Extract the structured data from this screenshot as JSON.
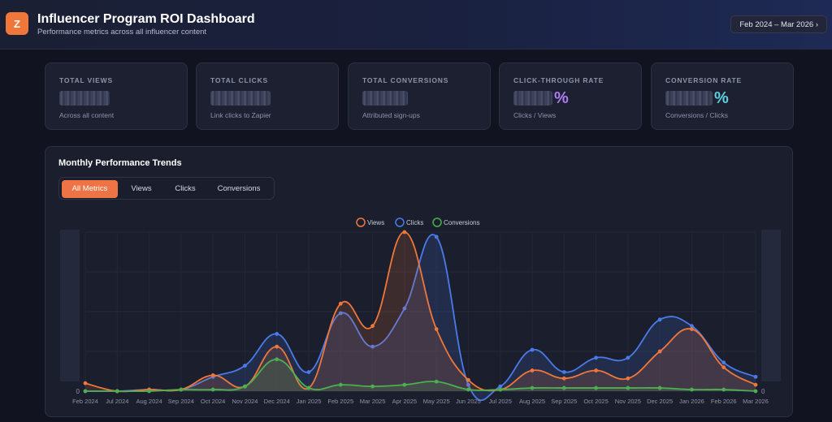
{
  "header": {
    "logo_letter": "Z",
    "title": "Influencer Program ROI Dashboard",
    "subtitle": "Performance metrics across all influencer content",
    "date_range": "Feb 2024 – Mar 2026 ›"
  },
  "kpis": [
    {
      "label": "TOTAL VIEWS",
      "sub": "Across all content",
      "unit": ""
    },
    {
      "label": "TOTAL CLICKS",
      "sub": "Link clicks to Zapier",
      "unit": ""
    },
    {
      "label": "TOTAL CONVERSIONS",
      "sub": "Attributed sign-ups",
      "unit": ""
    },
    {
      "label": "CLICK-THROUGH RATE",
      "sub": "Clicks / Views",
      "unit": "%",
      "unit_color": "#b07bf2"
    },
    {
      "label": "CONVERSION RATE",
      "sub": "Conversions / Clicks",
      "unit": "%",
      "unit_color": "#5fd0e0"
    }
  ],
  "chart_panel": {
    "title": "Monthly Performance Trends",
    "tabs": [
      "All Metrics",
      "Views",
      "Clicks",
      "Conversions"
    ],
    "active_tab": "All Metrics"
  },
  "colors": {
    "views": "#f0773a",
    "clicks": "#4b7bea",
    "conversions": "#4caf50"
  },
  "chart_data": {
    "type": "line",
    "categories": [
      "Feb 2024",
      "Jul 2024",
      "Aug 2024",
      "Sep 2024",
      "Oct 2024",
      "Nov 2024",
      "Dec 2024",
      "Jan 2025",
      "Feb 2025",
      "Mar 2025",
      "Apr 2025",
      "May 2025",
      "Jun 2025",
      "Jul 2025",
      "Aug 2025",
      "Sep 2025",
      "Oct 2025",
      "Nov 2025",
      "Dec 2025",
      "Jan 2026",
      "Feb 2026",
      "Mar 2026"
    ],
    "series": [
      {
        "name": "Views",
        "values": [
          5,
          0,
          1,
          1,
          10,
          3,
          28,
          2,
          55,
          41,
          100,
          39,
          7,
          1,
          13,
          8,
          13,
          8,
          25,
          39,
          15,
          4
        ]
      },
      {
        "name": "Clicks",
        "values": [
          0,
          0,
          1,
          1,
          9,
          16,
          36,
          12,
          49,
          28,
          52,
          97,
          4,
          3,
          26,
          12,
          21,
          21,
          45,
          41,
          18,
          9
        ]
      },
      {
        "name": "Conversions",
        "values": [
          0,
          0,
          0,
          1,
          1,
          3,
          20,
          2,
          4,
          3,
          4,
          6,
          1,
          1,
          2,
          2,
          2,
          2,
          2,
          1,
          1,
          0
        ]
      }
    ],
    "left_axis_tick": "0",
    "right_axis_tick": "0",
    "legend_placement": "top-center",
    "ylim": [
      0,
      100
    ],
    "grid": true
  }
}
